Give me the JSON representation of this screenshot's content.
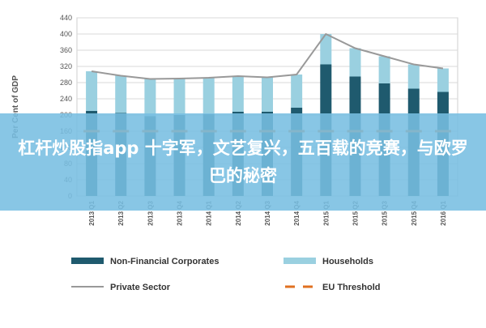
{
  "chart_data": {
    "type": "bar",
    "stacked": true,
    "ylabel": "Per Cent of GDP",
    "ylim": [
      0,
      440
    ],
    "yticks": [
      0,
      40,
      80,
      120,
      160,
      200,
      240,
      280,
      320,
      360,
      400,
      440
    ],
    "grid": true,
    "legend_position": "bottom",
    "categories": [
      "2013 Q1",
      "2013 Q2",
      "2013 Q3",
      "2013 Q4",
      "2014 Q1",
      "2014 Q2",
      "2014 Q3",
      "2014 Q4",
      "2015 Q1",
      "2015 Q2",
      "2015 Q3",
      "2015 Q4",
      "2016 Q1"
    ],
    "series": [
      {
        "name": "Non-Financial Corporates",
        "type": "bar",
        "color": "#1f5a6e",
        "values": [
          210,
          205,
          197,
          200,
          202,
          208,
          208,
          218,
          325,
          295,
          278,
          265,
          257
        ]
      },
      {
        "name": "Households",
        "type": "bar",
        "color": "#9ad0e0",
        "values": [
          98,
          92,
          92,
          90,
          90,
          88,
          85,
          82,
          75,
          70,
          67,
          60,
          58
        ]
      },
      {
        "name": "Private Sector",
        "type": "line",
        "color": "#999999",
        "values": [
          308,
          297,
          289,
          290,
          292,
          296,
          293,
          300,
          400,
          365,
          345,
          325,
          315
        ]
      },
      {
        "name": "EU Threshold",
        "type": "line",
        "dashed": true,
        "color": "#e07020",
        "values": [
          160,
          160,
          160,
          160,
          160,
          160,
          160,
          160,
          160,
          160,
          160,
          160,
          160
        ]
      }
    ]
  },
  "overlay": {
    "text": "杠杆炒股指app 十字军，文艺复兴，五百载的竞赛，与欧罗巴的秘密"
  }
}
